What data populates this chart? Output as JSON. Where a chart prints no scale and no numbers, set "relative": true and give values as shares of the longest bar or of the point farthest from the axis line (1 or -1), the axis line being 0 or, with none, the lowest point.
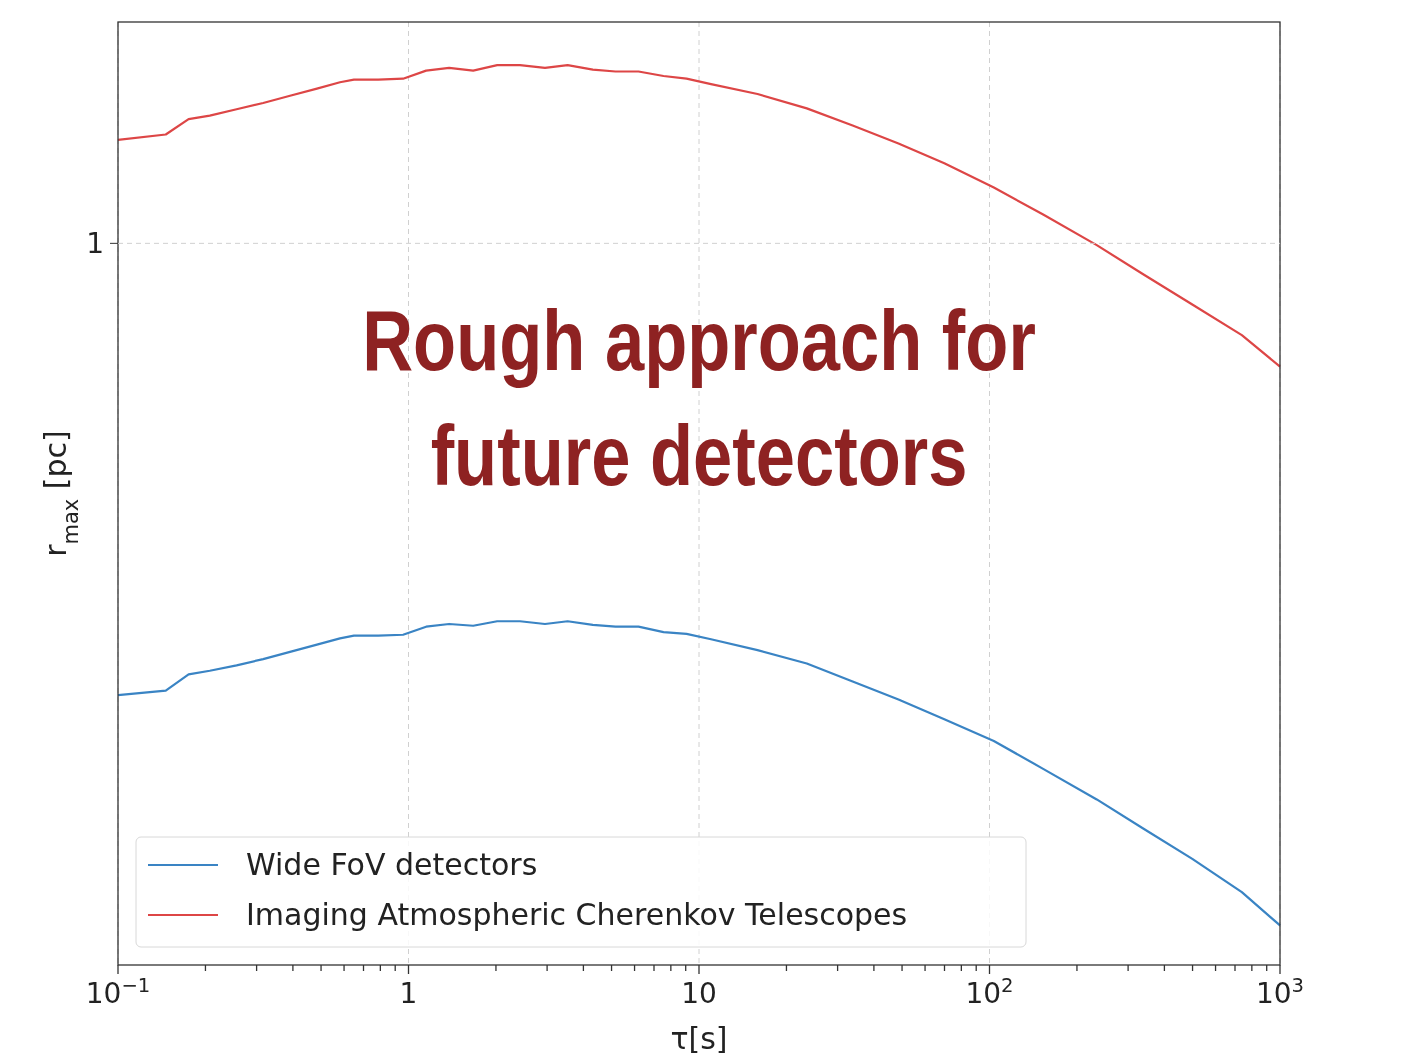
{
  "chart_data": {
    "type": "line",
    "xlabel": "τ[s]",
    "ylabel": "r$_{max}$ [pc]",
    "log": "x",
    "grid": "x",
    "relative": true,
    "legend": "bottom left",
    "xlim": [
      0.1,
      1000
    ],
    "xticks": [
      {
        "value": 0.1,
        "label": "10$^{−1}$"
      },
      {
        "value": 0.2,
        "label": null
      },
      {
        "value": 0.3,
        "label": null
      },
      {
        "value": 0.4,
        "label": null
      },
      {
        "value": 0.5,
        "label": null
      },
      {
        "value": 0.6,
        "label": null
      },
      {
        "value": 0.7,
        "label": null
      },
      {
        "value": 0.8,
        "label": null
      },
      {
        "value": 0.9,
        "label": null
      },
      1,
      {
        "value": 2,
        "label": null
      },
      {
        "value": 3,
        "label": null
      },
      {
        "value": 4,
        "label": null
      },
      {
        "value": 5,
        "label": null
      },
      {
        "value": 6,
        "label": null
      },
      {
        "value": 7,
        "label": null
      },
      {
        "value": 8,
        "label": null
      },
      {
        "value": 9,
        "label": null
      },
      10,
      {
        "value": 20,
        "label": null
      },
      {
        "value": 30,
        "label": null
      },
      {
        "value": 40,
        "label": null
      },
      {
        "value": 50,
        "label": null
      },
      {
        "value": 60,
        "label": null
      },
      {
        "value": 70,
        "label": null
      },
      {
        "value": 80,
        "label": null
      },
      {
        "value": 90,
        "label": null
      },
      {
        "value": 100,
        "label": "10$^{2}$"
      },
      {
        "value": 200,
        "label": null
      },
      {
        "value": 300,
        "label": null
      },
      {
        "value": 400,
        "label": null
      },
      {
        "value": 500,
        "label": null
      },
      {
        "value": 600,
        "label": null
      },
      {
        "value": 700,
        "label": null
      },
      {
        "value": 800,
        "label": null
      },
      {
        "value": 900,
        "label": null
      },
      {
        "value": 1000,
        "label": "10$^{3}$"
      }
    ],
    "x": [
      0.1,
      0.146,
      0.175,
      0.207,
      0.256,
      0.316,
      0.391,
      0.484,
      0.581,
      0.649,
      0.787,
      0.958,
      1.15,
      1.38,
      1.67,
      2.02,
      2.42,
      2.95,
      3.53,
      4.31,
      5.16,
      6.19,
      7.55,
      9.06,
      11.0,
      15.9,
      23.5,
      33.8,
      48.6,
      69.9,
      103.5,
      153,
      234,
      337,
      499,
      739,
      1000
    ],
    "series": [
      {
        "name": "Wide FoV detectors",
        "color": "#3a84c4",
        "values": [
          0.3,
          0.305,
          0.323,
          0.327,
          0.333,
          0.34,
          0.348,
          0.356,
          0.363,
          0.366,
          0.366,
          0.367,
          0.376,
          0.379,
          0.377,
          0.382,
          0.382,
          0.379,
          0.382,
          0.378,
          0.376,
          0.376,
          0.37,
          0.368,
          0.362,
          0.35,
          0.335,
          0.315,
          0.295,
          0.273,
          0.249,
          0.218,
          0.184,
          0.152,
          0.118,
          0.081,
          0.044
        ]
      },
      {
        "name": "Imaging Atmospheric Cherenkov Telescopes",
        "color": "#dd4646",
        "values": [
          0.917,
          0.923,
          0.94,
          0.944,
          0.951,
          0.958,
          0.966,
          0.974,
          0.981,
          0.984,
          0.984,
          0.985,
          0.994,
          0.997,
          0.994,
          1,
          1,
          0.997,
          1,
          0.995,
          0.993,
          0.993,
          0.988,
          0.985,
          0.979,
          0.968,
          0.952,
          0.933,
          0.913,
          0.891,
          0.864,
          0.834,
          0.8,
          0.768,
          0.734,
          0.7,
          0.665
        ]
      }
    ],
    "ref_lines": [
      {
        "axis": "y",
        "value": 0.802,
        "label": "1",
        "color": "#d0d0d0",
        "line_style": "dashed"
      }
    ],
    "annotations": [
      "Rough approach for future detectors"
    ]
  }
}
